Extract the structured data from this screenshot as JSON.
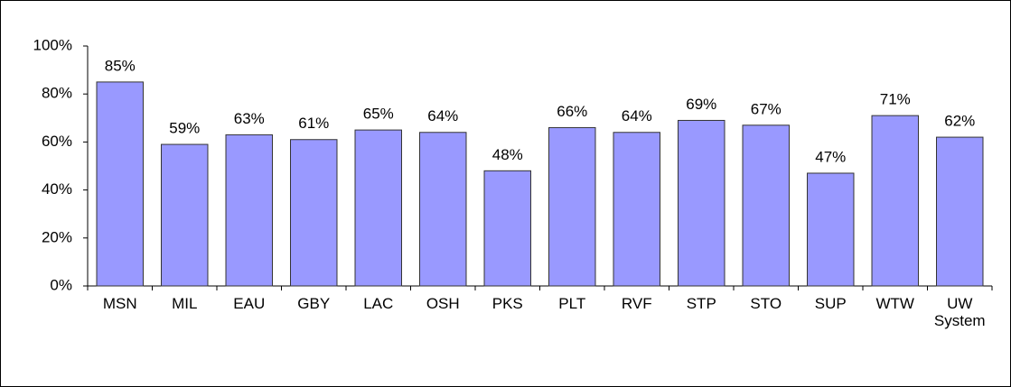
{
  "chart_data": {
    "type": "bar",
    "categories": [
      "MSN",
      "MIL",
      "EAU",
      "GBY",
      "LAC",
      "OSH",
      "PKS",
      "PLT",
      "RVF",
      "STP",
      "STO",
      "SUP",
      "WTW",
      "UW System"
    ],
    "values": [
      85,
      59,
      63,
      61,
      65,
      64,
      48,
      66,
      64,
      69,
      67,
      47,
      71,
      62
    ],
    "value_labels": [
      "85%",
      "59%",
      "63%",
      "61%",
      "65%",
      "64%",
      "48%",
      "66%",
      "64%",
      "69%",
      "67%",
      "47%",
      "71%",
      "62%"
    ],
    "color": "#9999ff",
    "ylim": [
      0,
      100
    ],
    "yticks": [
      {
        "value": 0,
        "label": "0%"
      },
      {
        "value": 20,
        "label": "20%"
      },
      {
        "value": 40,
        "label": "40%"
      },
      {
        "value": 60,
        "label": "60%"
      },
      {
        "value": 80,
        "label": "80%"
      },
      {
        "value": 100,
        "label": "100%"
      }
    ],
    "grid": false
  }
}
